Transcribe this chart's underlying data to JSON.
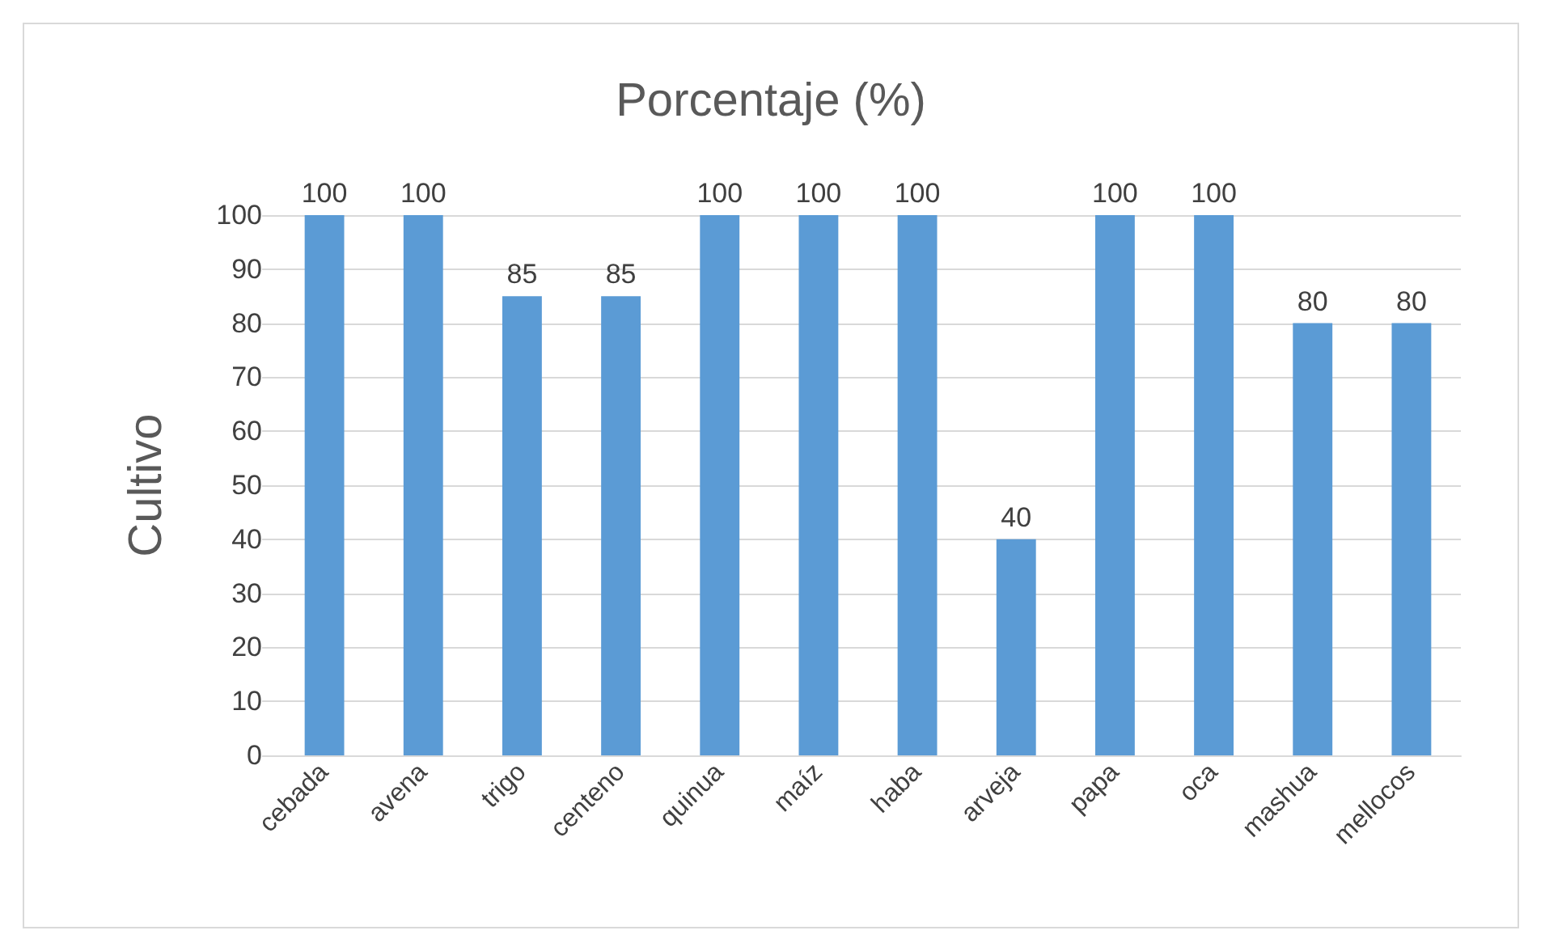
{
  "chart_data": {
    "type": "bar",
    "title": "Porcentaje (%)",
    "ylabel": "Cultivo",
    "categories": [
      "cebada",
      "avena",
      "trigo",
      "centeno",
      "quinua",
      "maíz",
      "haba",
      "arveja",
      "papa",
      "oca",
      "mashua",
      "mellocos"
    ],
    "values": [
      100,
      100,
      85,
      85,
      100,
      100,
      100,
      40,
      100,
      100,
      80,
      80
    ],
    "color": "#5b9bd5",
    "ylim": [
      0,
      100
    ],
    "yticks": [
      0,
      10,
      20,
      30,
      40,
      50,
      60,
      70,
      80,
      90,
      100
    ],
    "grid": "y",
    "data_labels": true
  }
}
